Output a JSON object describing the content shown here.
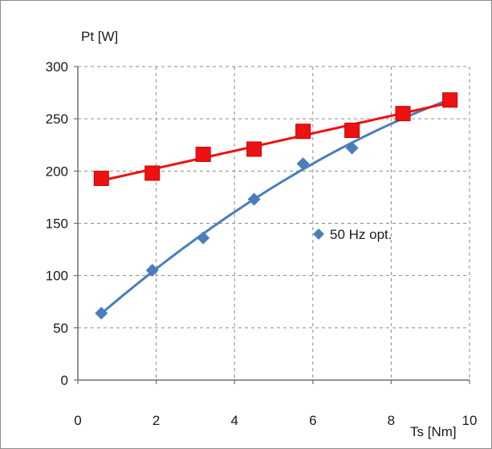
{
  "chart_data": {
    "type": "scatter",
    "title": "",
    "ylabel": "Pt [W]",
    "xlabel": "Ts [Nm]",
    "xlim": [
      0,
      10
    ],
    "ylim": [
      0,
      300
    ],
    "xticks": [
      0,
      2,
      4,
      6,
      8,
      10
    ],
    "yticks": [
      0,
      50,
      100,
      150,
      200,
      250,
      300
    ],
    "grid": true,
    "legend": {
      "position": "center-right"
    },
    "series": [
      {
        "name": "50 Hz opt.",
        "marker": "diamond",
        "trendline": true,
        "color": "#4a7ebb",
        "points": [
          {
            "x": 0.6,
            "y": 64
          },
          {
            "x": 1.9,
            "y": 105
          },
          {
            "x": 3.2,
            "y": 136
          },
          {
            "x": 4.5,
            "y": 173
          },
          {
            "x": 5.75,
            "y": 207
          },
          {
            "x": 7.0,
            "y": 222
          },
          {
            "x": 8.3,
            "y": 254
          },
          {
            "x": 9.5,
            "y": 267
          }
        ]
      },
      {
        "marker": "square",
        "trendline": true,
        "color": "#ee1111",
        "points": [
          {
            "x": 0.6,
            "y": 193
          },
          {
            "x": 1.9,
            "y": 198
          },
          {
            "x": 3.2,
            "y": 216
          },
          {
            "x": 4.5,
            "y": 221
          },
          {
            "x": 5.75,
            "y": 238
          },
          {
            "x": 7.0,
            "y": 239
          },
          {
            "x": 8.3,
            "y": 255
          },
          {
            "x": 9.5,
            "y": 268
          }
        ]
      }
    ]
  }
}
